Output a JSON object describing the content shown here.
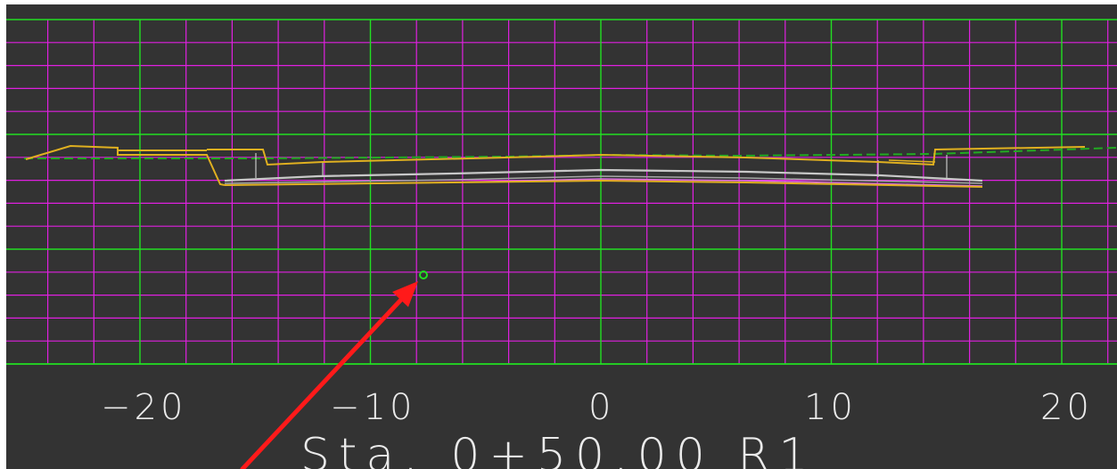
{
  "view": {
    "background": "#333333",
    "major_grid_color": "#22e022",
    "minor_grid_color": "#e020e0"
  },
  "x_axis_labels": [
    "−20",
    "−10",
    "0",
    "10",
    "20"
  ],
  "station_label": "Sta. 0+50.00 R1",
  "colors": {
    "ground_line": "#e0b020",
    "existing_ground": "#22aa22",
    "pavement": "#c8c8c8",
    "subgrade": "#e070e0",
    "pointer_arrow": "#ff1a1a"
  },
  "icons": {
    "snap_point": "green-circle-marker",
    "pointer": "red-arrow-icon"
  }
}
